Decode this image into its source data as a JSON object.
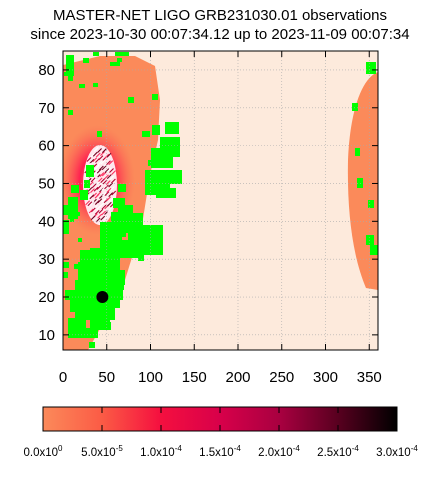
{
  "title_line1": "MASTER-NET LIGO GRB231030.01 observations",
  "title_line2": "since 2023-10-30 00:07:34.12 up to 2023-11-09 00:07:34",
  "colors": {
    "background_region": "#fdeadc",
    "low_probability": "#fb8a5a",
    "mid_probability": "#f0104a",
    "high_probability": "#000000",
    "observed_fields": "#00ff00",
    "grid": "#aaaaaa"
  },
  "chart_data": {
    "type": "heatmap",
    "title": "MASTER-NET LIGO GRB231030.01 observations",
    "subtitle": "since 2023-10-30 00:07:34.12 up to 2023-11-09 00:07:34",
    "xlim": [
      0,
      360
    ],
    "ylim": [
      6,
      85
    ],
    "x_ticks": [
      0,
      50,
      100,
      150,
      200,
      250,
      300,
      350
    ],
    "y_ticks": [
      10,
      20,
      30,
      40,
      50,
      60,
      70,
      80
    ],
    "grid": true,
    "colorbar": {
      "min": 0,
      "max": 0.0003,
      "tick_labels": [
        {
          "mantissa": "0.0x10",
          "exponent": "0"
        },
        {
          "mantissa": "5.0x10",
          "exponent": "-5"
        },
        {
          "mantissa": "1.0x10",
          "exponent": "-4"
        },
        {
          "mantissa": "1.5x10",
          "exponent": "-4"
        },
        {
          "mantissa": "2.0x10",
          "exponent": "-4"
        },
        {
          "mantissa": "2.5x10",
          "exponent": "-4"
        },
        {
          "mantissa": "3.0x10",
          "exponent": "-4"
        }
      ]
    },
    "best_position": {
      "ra": 45,
      "dec": 20
    }
  }
}
